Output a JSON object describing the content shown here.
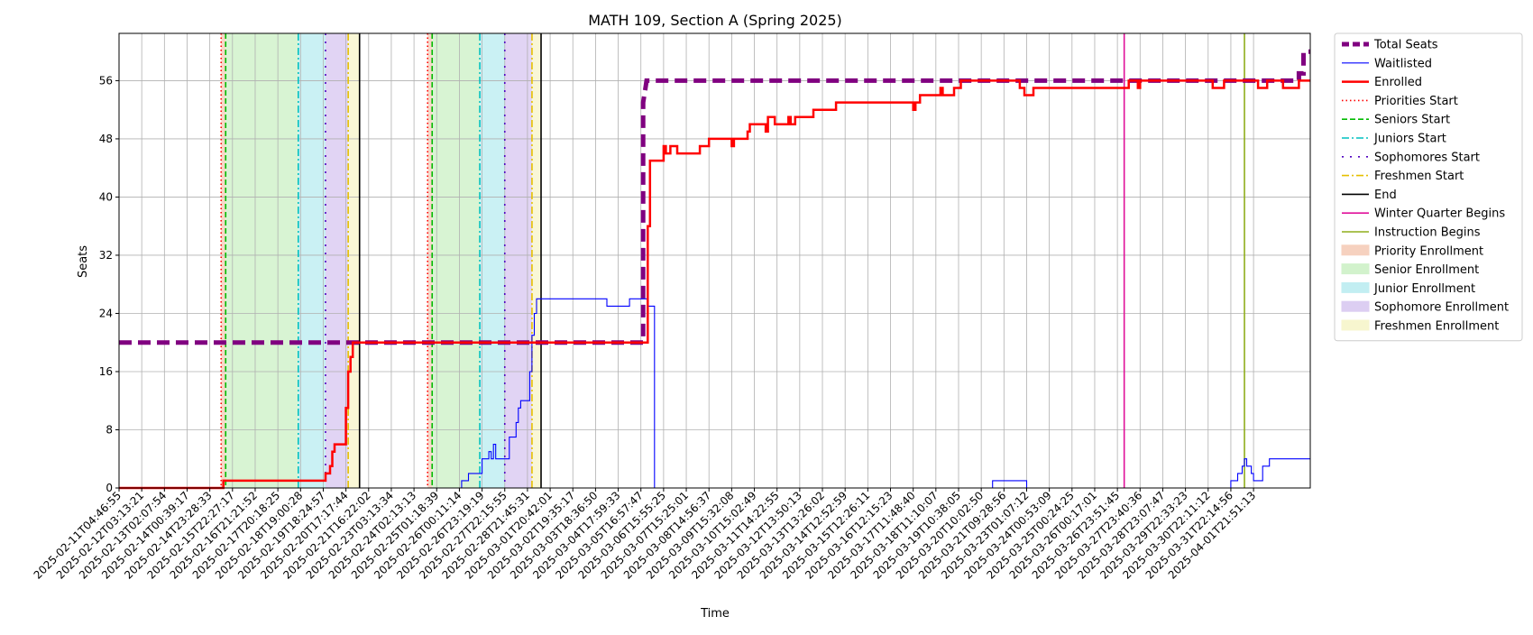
{
  "chart_data": {
    "type": "line",
    "title": "MATH 109, Section A (Spring 2025)",
    "xlabel": "Time",
    "ylabel": "Seats",
    "x_tick_labels": [
      "2025-02-11T04:46:55",
      "2025-02-12T03:13:21",
      "2025-02-13T02:07:54",
      "2025-02-14T00:39:17",
      "2025-02-14T23:28:33",
      "2025-02-15T22:27:17",
      "2025-02-16T21:21:52",
      "2025-02-17T20:18:25",
      "2025-02-18T19:00:28",
      "2025-02-19T18:24:57",
      "2025-02-20T17:17:44",
      "2025-02-21T16:22:02",
      "2025-02-23T03:13:34",
      "2025-02-24T02:13:13",
      "2025-02-25T01:18:39",
      "2025-02-26T00:11:14",
      "2025-02-26T23:19:19",
      "2025-02-27T22:15:55",
      "2025-02-28T21:45:31",
      "2025-03-01T20:42:01",
      "2025-03-02T19:35:17",
      "2025-03-03T18:36:50",
      "2025-03-04T17:59:33",
      "2025-03-05T16:57:47",
      "2025-03-06T15:55:25",
      "2025-03-07T15:25:01",
      "2025-03-08T14:56:37",
      "2025-03-09T15:32:08",
      "2025-03-10T15:02:49",
      "2025-03-11T14:22:55",
      "2025-03-12T13:50:13",
      "2025-03-13T13:26:02",
      "2025-03-14T12:52:59",
      "2025-03-15T12:26:11",
      "2025-03-16T12:15:23",
      "2025-03-17T11:48:40",
      "2025-03-18T11:10:07",
      "2025-03-19T10:38:05",
      "2025-03-20T10:02:50",
      "2025-03-21T09:28:56",
      "2025-03-23T01:07:12",
      "2025-03-24T00:53:09",
      "2025-03-25T00:24:25",
      "2025-03-26T00:17:01",
      "2025-03-26T23:51:45",
      "2025-03-27T23:40:36",
      "2025-03-28T23:07:47",
      "2025-03-29T22:33:23",
      "2025-03-30T22:11:12",
      "2025-03-31T22:14:56",
      "2025-04-01T21:51:13"
    ],
    "x_range": [
      0,
      52.5
    ],
    "ylim": [
      0,
      62.5
    ],
    "y_ticks": [
      0,
      8,
      16,
      24,
      32,
      40,
      48,
      56
    ],
    "grid": true,
    "legend_position": "outside upper right",
    "series": [
      {
        "name": "Total Seats",
        "color": "#800080",
        "style": "dashed-thick",
        "points": [
          [
            0,
            20
          ],
          [
            23.1,
            20
          ],
          [
            23.1,
            53
          ],
          [
            23.2,
            55
          ],
          [
            23.25,
            56
          ],
          [
            52.0,
            56
          ],
          [
            52.0,
            57
          ],
          [
            52.2,
            57
          ],
          [
            52.2,
            60
          ],
          [
            52.5,
            60
          ]
        ]
      },
      {
        "name": "Waitlisted",
        "color": "#0000ff",
        "style": "solid-thin",
        "points": [
          [
            0,
            0
          ],
          [
            15.1,
            0
          ],
          [
            15.1,
            1
          ],
          [
            15.4,
            1
          ],
          [
            15.4,
            2
          ],
          [
            16.0,
            2
          ],
          [
            16.0,
            4
          ],
          [
            16.3,
            4
          ],
          [
            16.3,
            5
          ],
          [
            16.4,
            5
          ],
          [
            16.4,
            4
          ],
          [
            16.5,
            4
          ],
          [
            16.5,
            6
          ],
          [
            16.6,
            6
          ],
          [
            16.6,
            4
          ],
          [
            17.2,
            4
          ],
          [
            17.2,
            7
          ],
          [
            17.5,
            7
          ],
          [
            17.5,
            9
          ],
          [
            17.6,
            9
          ],
          [
            17.6,
            11
          ],
          [
            17.7,
            11
          ],
          [
            17.7,
            12
          ],
          [
            18.1,
            12
          ],
          [
            18.1,
            16
          ],
          [
            18.2,
            16
          ],
          [
            18.2,
            21
          ],
          [
            18.3,
            21
          ],
          [
            18.3,
            24
          ],
          [
            18.4,
            24
          ],
          [
            18.4,
            26
          ],
          [
            21.5,
            26
          ],
          [
            21.5,
            25
          ],
          [
            22.5,
            25
          ],
          [
            22.5,
            26
          ],
          [
            23.3,
            26
          ],
          [
            23.3,
            25
          ],
          [
            23.6,
            25
          ],
          [
            23.6,
            0
          ],
          [
            38.5,
            0
          ],
          [
            38.5,
            1
          ],
          [
            40.0,
            1
          ],
          [
            40.0,
            0
          ],
          [
            49.0,
            0
          ],
          [
            49.0,
            1
          ],
          [
            49.3,
            1
          ],
          [
            49.3,
            2
          ],
          [
            49.5,
            2
          ],
          [
            49.5,
            3
          ],
          [
            49.6,
            3
          ],
          [
            49.6,
            4
          ],
          [
            49.7,
            4
          ],
          [
            49.7,
            3
          ],
          [
            49.9,
            3
          ],
          [
            49.9,
            2
          ],
          [
            50.0,
            2
          ],
          [
            50.0,
            1
          ],
          [
            50.4,
            1
          ],
          [
            50.4,
            3
          ],
          [
            50.7,
            3
          ],
          [
            50.7,
            4
          ],
          [
            52.5,
            4
          ]
        ]
      },
      {
        "name": "Enrolled",
        "color": "#ff0000",
        "style": "solid-thick",
        "points": [
          [
            0,
            0
          ],
          [
            4.6,
            0
          ],
          [
            4.6,
            1
          ],
          [
            9.1,
            1
          ],
          [
            9.1,
            2
          ],
          [
            9.3,
            2
          ],
          [
            9.3,
            3
          ],
          [
            9.4,
            3
          ],
          [
            9.4,
            5
          ],
          [
            9.5,
            5
          ],
          [
            9.5,
            6
          ],
          [
            10.0,
            6
          ],
          [
            10.0,
            11
          ],
          [
            10.1,
            11
          ],
          [
            10.1,
            16
          ],
          [
            10.2,
            16
          ],
          [
            10.2,
            18
          ],
          [
            10.3,
            18
          ],
          [
            10.3,
            20
          ],
          [
            23.3,
            20
          ],
          [
            23.3,
            36
          ],
          [
            23.4,
            36
          ],
          [
            23.4,
            45
          ],
          [
            24.0,
            45
          ],
          [
            24.0,
            47
          ],
          [
            24.1,
            47
          ],
          [
            24.1,
            46
          ],
          [
            24.3,
            46
          ],
          [
            24.3,
            47
          ],
          [
            24.6,
            47
          ],
          [
            24.6,
            46
          ],
          [
            25.6,
            46
          ],
          [
            25.6,
            47
          ],
          [
            26.0,
            47
          ],
          [
            26.0,
            48
          ],
          [
            27.0,
            48
          ],
          [
            27.0,
            47
          ],
          [
            27.1,
            47
          ],
          [
            27.1,
            48
          ],
          [
            27.7,
            48
          ],
          [
            27.7,
            49
          ],
          [
            27.8,
            49
          ],
          [
            27.8,
            50
          ],
          [
            28.5,
            50
          ],
          [
            28.5,
            49
          ],
          [
            28.6,
            49
          ],
          [
            28.6,
            51
          ],
          [
            28.9,
            51
          ],
          [
            28.9,
            50
          ],
          [
            29.5,
            50
          ],
          [
            29.5,
            51
          ],
          [
            29.6,
            51
          ],
          [
            29.6,
            50
          ],
          [
            29.8,
            50
          ],
          [
            29.8,
            51
          ],
          [
            30.6,
            51
          ],
          [
            30.6,
            52
          ],
          [
            31.6,
            52
          ],
          [
            31.6,
            53
          ],
          [
            35.0,
            53
          ],
          [
            35.0,
            52
          ],
          [
            35.1,
            52
          ],
          [
            35.1,
            53
          ],
          [
            35.3,
            53
          ],
          [
            35.3,
            54
          ],
          [
            36.2,
            54
          ],
          [
            36.2,
            55
          ],
          [
            36.3,
            55
          ],
          [
            36.3,
            54
          ],
          [
            36.8,
            54
          ],
          [
            36.8,
            55
          ],
          [
            37.1,
            55
          ],
          [
            37.1,
            56
          ],
          [
            39.7,
            56
          ],
          [
            39.7,
            55
          ],
          [
            39.9,
            55
          ],
          [
            39.9,
            54
          ],
          [
            40.3,
            54
          ],
          [
            40.3,
            55
          ],
          [
            44.5,
            55
          ],
          [
            44.5,
            56
          ],
          [
            44.9,
            56
          ],
          [
            44.9,
            55
          ],
          [
            45.0,
            55
          ],
          [
            45.0,
            56
          ],
          [
            48.2,
            56
          ],
          [
            48.2,
            55
          ],
          [
            48.7,
            55
          ],
          [
            48.7,
            56
          ],
          [
            50.2,
            56
          ],
          [
            50.2,
            55
          ],
          [
            50.6,
            55
          ],
          [
            50.6,
            56
          ],
          [
            51.3,
            56
          ],
          [
            51.3,
            55
          ],
          [
            52.0,
            55
          ],
          [
            52.0,
            56
          ],
          [
            52.5,
            56
          ]
        ]
      }
    ],
    "reference_lines": [
      {
        "name": "Priorities Start",
        "color": "#ff0000",
        "style": "dotted",
        "x": [
          4.5,
          13.6
        ]
      },
      {
        "name": "Seniors Start",
        "color": "#00bb00",
        "style": "dashed",
        "x": [
          4.7,
          13.8
        ]
      },
      {
        "name": "Juniors Start",
        "color": "#00c0c0",
        "style": "dashdot",
        "x": [
          7.9,
          15.9
        ]
      },
      {
        "name": "Sophomores Start",
        "color": "#5000c0",
        "style": "loosedot",
        "x": [
          9.1,
          17.0
        ]
      },
      {
        "name": "Freshmen Start",
        "color": "#e6c000",
        "style": "dashdot",
        "x": [
          10.1,
          18.2
        ]
      },
      {
        "name": "End",
        "color": "#000000",
        "style": "solid",
        "x": [
          10.6,
          18.6
        ]
      },
      {
        "name": "Winter Quarter Begins",
        "color": "#e0109a",
        "style": "solid",
        "x": [
          44.3
        ]
      },
      {
        "name": "Instruction Begins",
        "color": "#8fae1b",
        "style": "solid",
        "x": [
          49.6
        ]
      }
    ],
    "shaded_regions": [
      {
        "name": "Priority Enrollment",
        "color": "#f5c6b0",
        "spans": [
          [
            4.5,
            4.7
          ],
          [
            13.6,
            13.8
          ]
        ]
      },
      {
        "name": "Senior Enrollment",
        "color": "#c8efc0",
        "spans": [
          [
            4.7,
            7.9
          ],
          [
            13.8,
            15.9
          ]
        ]
      },
      {
        "name": "Junior Enrollment",
        "color": "#b4ebef",
        "spans": [
          [
            7.9,
            9.1
          ],
          [
            15.9,
            17.0
          ]
        ]
      },
      {
        "name": "Sophomore Enrollment",
        "color": "#d4c2f0",
        "spans": [
          [
            9.1,
            10.1
          ],
          [
            17.0,
            18.2
          ]
        ]
      },
      {
        "name": "Freshmen Enrollment",
        "color": "#f6f4c4",
        "spans": [
          [
            10.1,
            10.6
          ],
          [
            18.2,
            18.6
          ]
        ]
      }
    ],
    "legend": [
      {
        "label": "Total Seats",
        "kind": "line",
        "color": "#800080",
        "style": "dashed-thick"
      },
      {
        "label": "Waitlisted",
        "kind": "line",
        "color": "#0000ff",
        "style": "solid-thin"
      },
      {
        "label": "Enrolled",
        "kind": "line",
        "color": "#ff0000",
        "style": "solid-thick"
      },
      {
        "label": "Priorities Start",
        "kind": "line",
        "color": "#ff0000",
        "style": "dotted"
      },
      {
        "label": "Seniors Start",
        "kind": "line",
        "color": "#00bb00",
        "style": "dashed"
      },
      {
        "label": "Juniors Start",
        "kind": "line",
        "color": "#00c0c0",
        "style": "dashdot"
      },
      {
        "label": "Sophomores Start",
        "kind": "line",
        "color": "#5000c0",
        "style": "loosedot"
      },
      {
        "label": "Freshmen Start",
        "kind": "line",
        "color": "#e6c000",
        "style": "dashdot"
      },
      {
        "label": "End",
        "kind": "line",
        "color": "#000000",
        "style": "solid"
      },
      {
        "label": "Winter Quarter Begins",
        "kind": "line",
        "color": "#e0109a",
        "style": "solid"
      },
      {
        "label": "Instruction Begins",
        "kind": "line",
        "color": "#8fae1b",
        "style": "solid"
      },
      {
        "label": "Priority Enrollment",
        "kind": "patch",
        "color": "#f5c6b0"
      },
      {
        "label": "Senior Enrollment",
        "kind": "patch",
        "color": "#c8efc0"
      },
      {
        "label": "Junior Enrollment",
        "kind": "patch",
        "color": "#b4ebef"
      },
      {
        "label": "Sophomore Enrollment",
        "kind": "patch",
        "color": "#d4c2f0"
      },
      {
        "label": "Freshmen Enrollment",
        "kind": "patch",
        "color": "#f6f4c4"
      }
    ]
  }
}
